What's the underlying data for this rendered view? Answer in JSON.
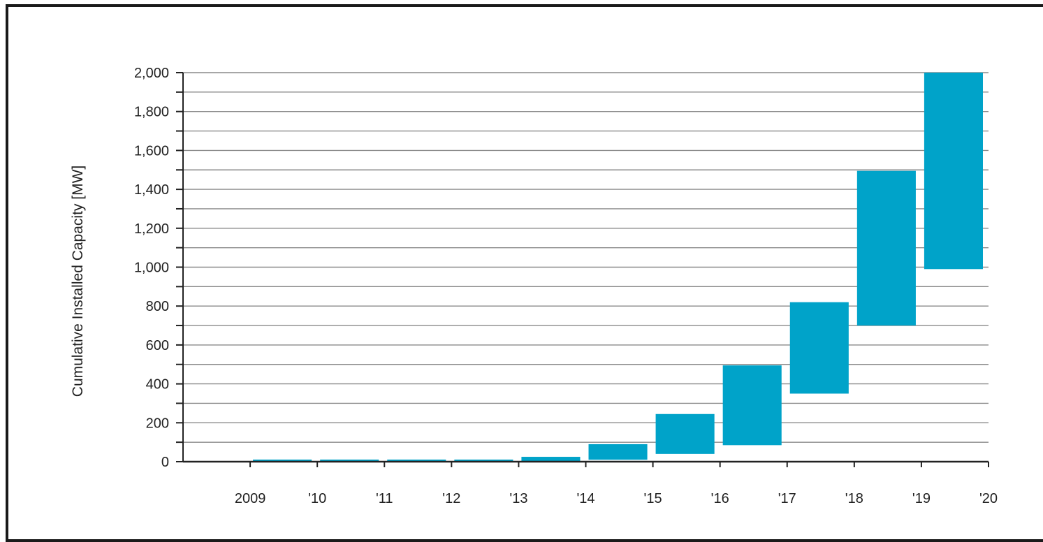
{
  "chart_data": {
    "type": "bar",
    "subtype": "floating-range",
    "title": "",
    "xlabel": "",
    "ylabel": "Cumulative Installed Capacity [MW]",
    "ylim": [
      0,
      2000
    ],
    "y_major_ticks": [
      0,
      200,
      400,
      600,
      800,
      1000,
      1200,
      1400,
      1600,
      1800,
      2000
    ],
    "y_tick_labels": [
      "0",
      "200",
      "400",
      "600",
      "800",
      "1,000",
      "1,200",
      "1,400",
      "1,600",
      "1,800",
      "2,000"
    ],
    "y_minor_step": 100,
    "grid": true,
    "x_tick_labels": [
      "2009",
      "'10",
      "'11",
      "'12",
      "'13",
      "'14",
      "'15",
      "'16",
      "'17",
      "'18",
      "'19",
      "'20"
    ],
    "bar_color": "#00a3c9",
    "bars": [
      {
        "period": "2009-'10",
        "low": 0,
        "high": 0
      },
      {
        "period": "'10-'11",
        "low": 0,
        "high": 3
      },
      {
        "period": "'11-'12",
        "low": 0,
        "high": 4
      },
      {
        "period": "'12-'13",
        "low": 0,
        "high": 10
      },
      {
        "period": "'13-'14",
        "low": 0,
        "high": 25
      },
      {
        "period": "'14-'15",
        "low": 10,
        "high": 90
      },
      {
        "period": "'15-'16",
        "low": 40,
        "high": 245
      },
      {
        "period": "'16-'17",
        "low": 85,
        "high": 495
      },
      {
        "period": "'17-'18",
        "low": 350,
        "high": 820
      },
      {
        "period": "'18-'19",
        "low": 700,
        "high": 1495
      },
      {
        "period": "'19-'20",
        "low": 990,
        "high": 2000
      }
    ]
  }
}
